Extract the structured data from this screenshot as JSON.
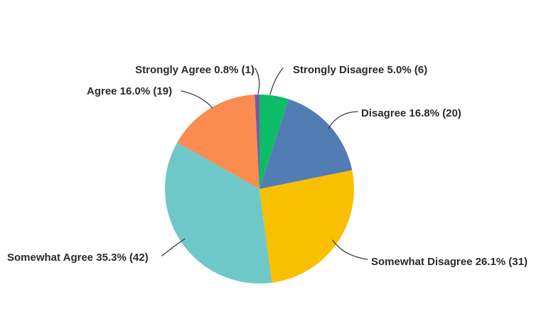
{
  "chart_data": {
    "type": "pie",
    "title": "",
    "direction": "clockwise",
    "start_angle_deg": 0,
    "legend_position": "callout-labels",
    "background": "#FFFFFF",
    "label_color": "#2A2A2A",
    "leader_line_color": "#3D3D3D",
    "slices": [
      {
        "label": "Strongly Disagree",
        "pct": 5.0,
        "count": 6,
        "display": "Strongly Disagree 5.0% (6)",
        "color": "#0CBC66"
      },
      {
        "label": "Disagree",
        "pct": 16.8,
        "count": 20,
        "display": "Disagree 16.8% (20)",
        "color": "#527CB4"
      },
      {
        "label": "Somewhat Disagree",
        "pct": 26.1,
        "count": 31,
        "display": "Somewhat Disagree 26.1% (31)",
        "color": "#F9C002"
      },
      {
        "label": "Somewhat Agree",
        "pct": 35.3,
        "count": 42,
        "display": "Somewhat Agree 35.3% (42)",
        "color": "#6EC8C8"
      },
      {
        "label": "Agree",
        "pct": 16.0,
        "count": 19,
        "display": "Agree 16.0% (19)",
        "color": "#FA8B51"
      },
      {
        "label": "Strongly Agree",
        "pct": 0.8,
        "count": 1,
        "display": "Strongly Agree 0.8% (1)",
        "color": "#7A5BA1"
      }
    ]
  }
}
